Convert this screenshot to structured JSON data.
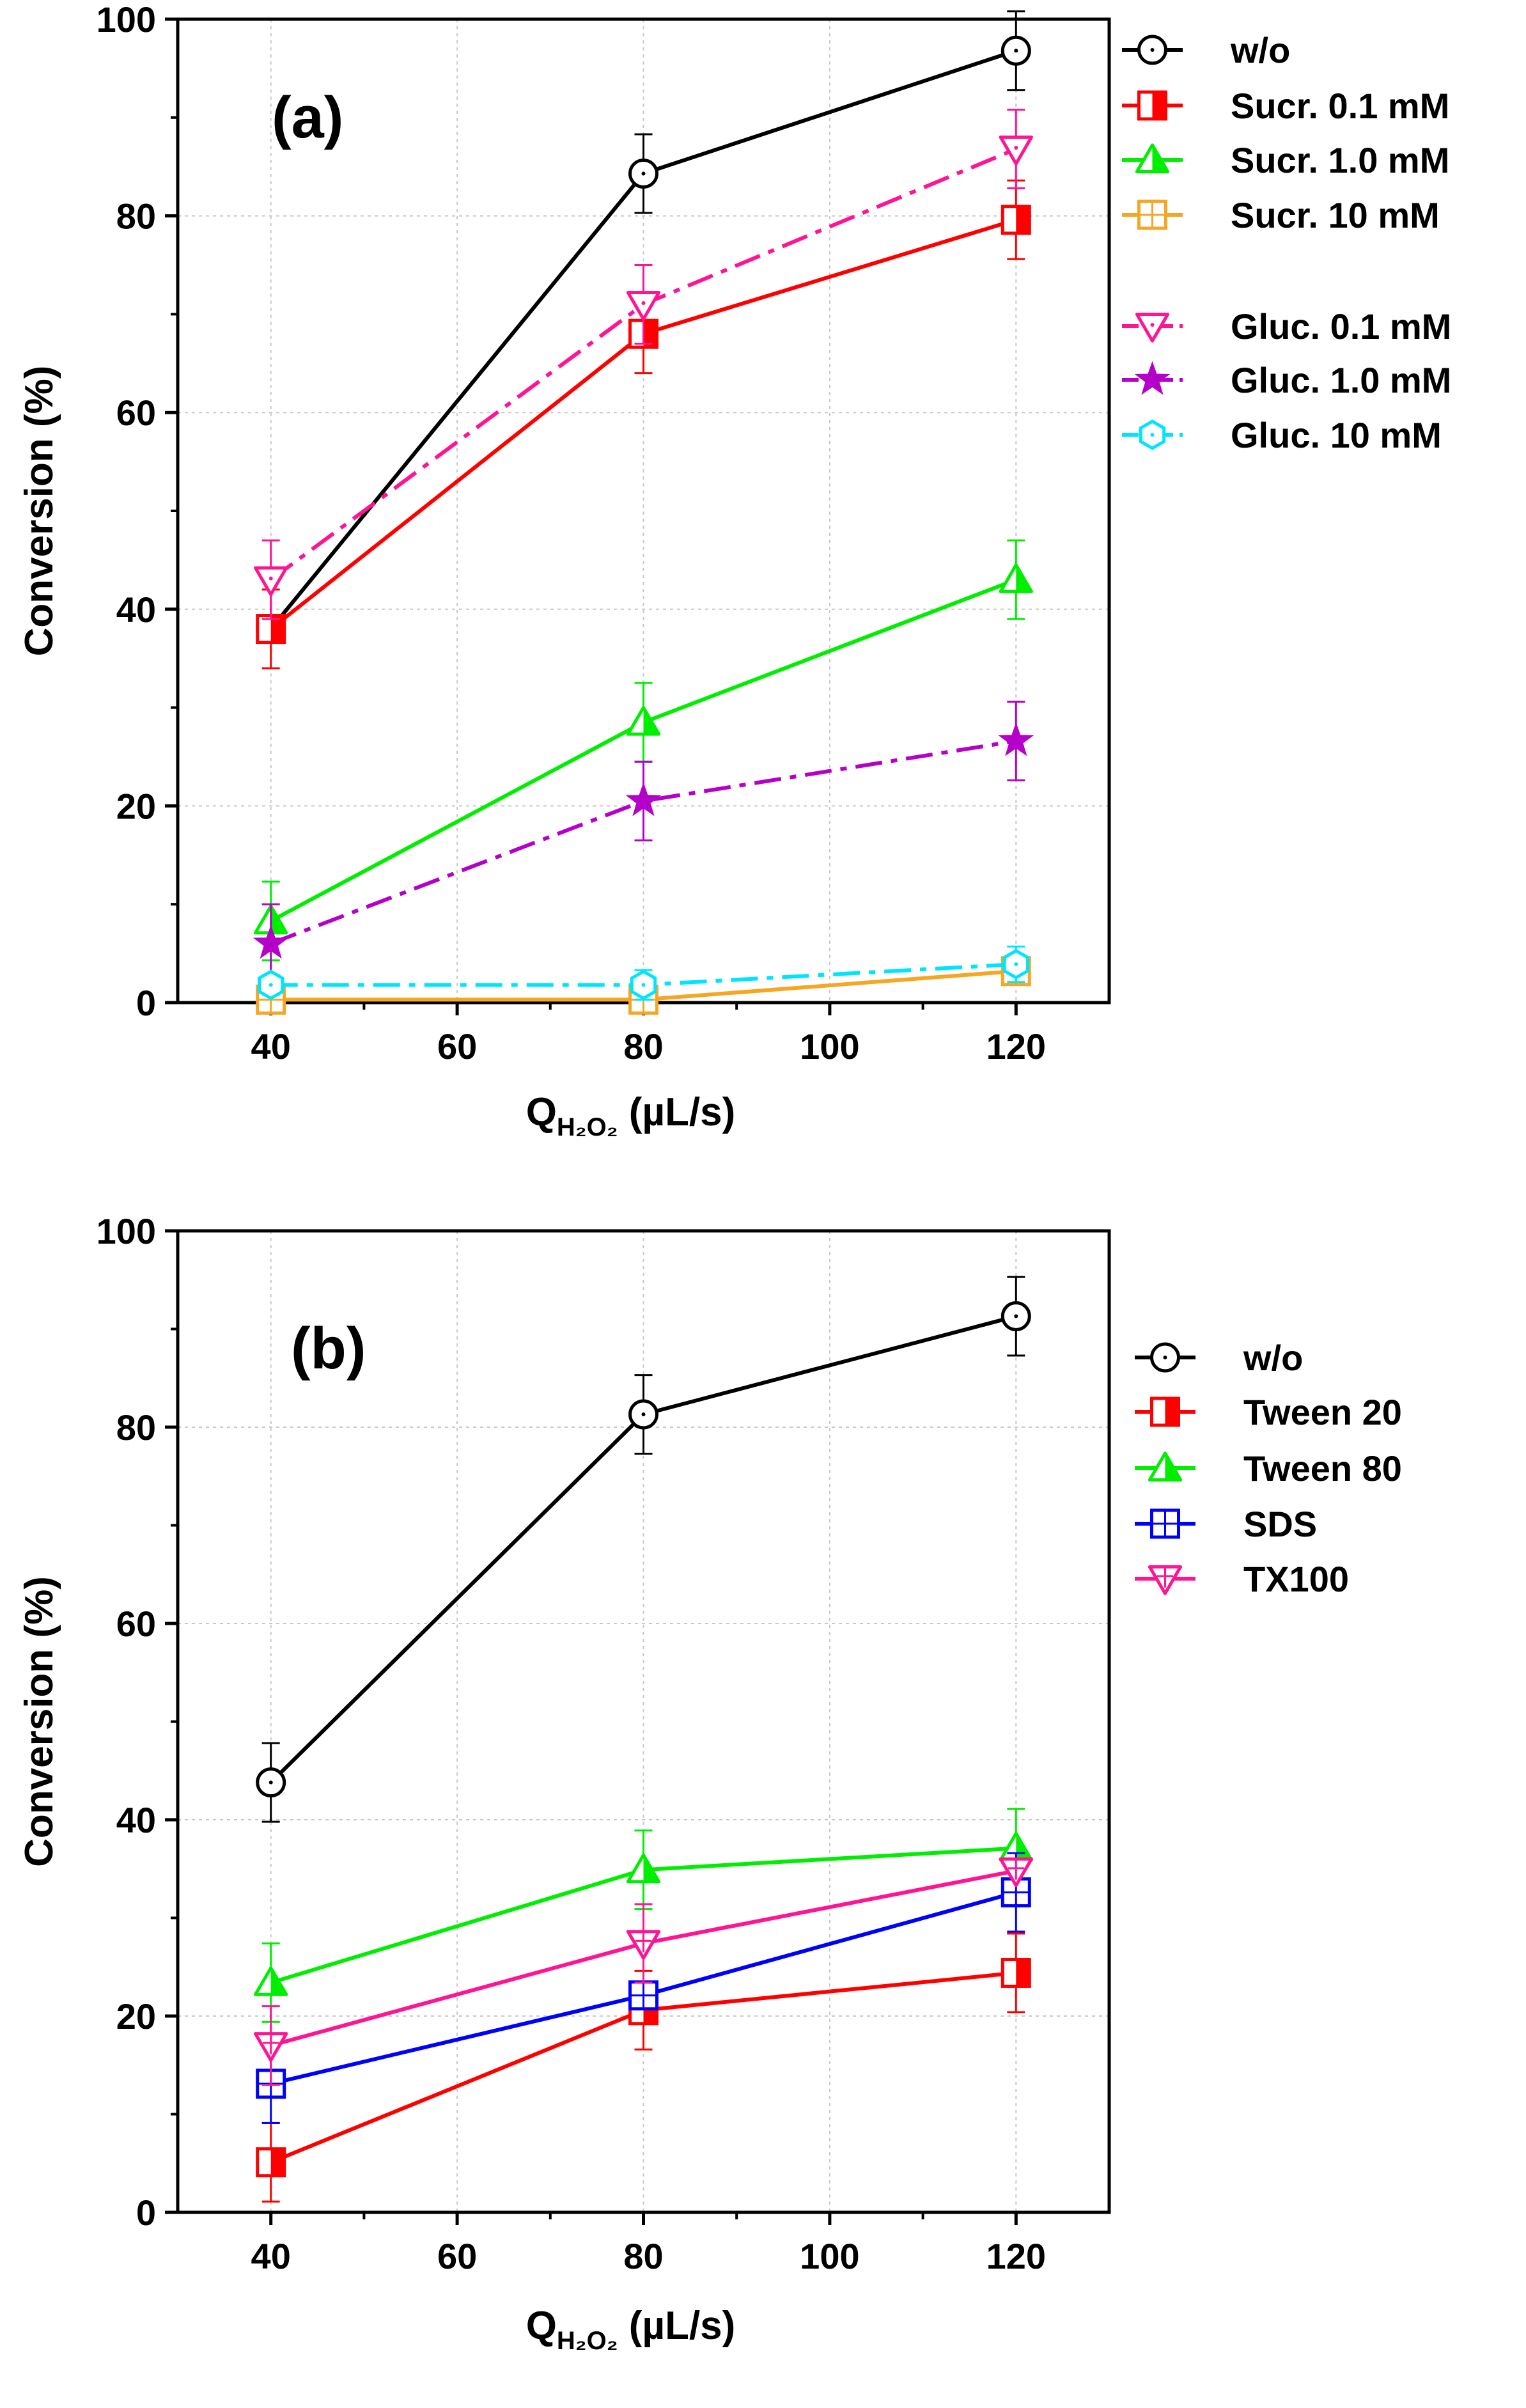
{
  "chart_data": [
    {
      "panel": "(a)",
      "type": "line",
      "xlabel": {
        "main": "Q",
        "sub": "H₂O₂",
        "unit": " (µL/s)"
      },
      "ylabel": "Conversion (%)",
      "xlim": [
        30,
        130
      ],
      "ylim": [
        0,
        100
      ],
      "xticks": [
        40,
        60,
        80,
        100,
        120
      ],
      "yticks": [
        0,
        20,
        40,
        60,
        80,
        100
      ],
      "x": [
        40,
        80,
        120
      ],
      "grid": true,
      "legend_position": "right-outside",
      "series": [
        {
          "name": "w/o",
          "values": [
            38,
            84.3,
            96.8
          ],
          "errors": [
            0,
            4,
            4
          ],
          "color": "#000000",
          "marker": "circle-dot",
          "dash": "solid"
        },
        {
          "name": "Sucr. 0.1 mM",
          "values": [
            38,
            68,
            79.6
          ],
          "errors": [
            4,
            4,
            4
          ],
          "color": "#ff0000",
          "marker": "square-half",
          "dash": "solid"
        },
        {
          "name": "Sucr. 1.0 mM",
          "values": [
            8.3,
            28.5,
            43
          ],
          "errors": [
            4,
            4,
            4
          ],
          "color": "#00ee00",
          "marker": "triangle-up-half",
          "dash": "solid"
        },
        {
          "name": "Sucr. 10  mM",
          "values": [
            0.3,
            0.3,
            3.2
          ],
          "errors": [
            0,
            0,
            0
          ],
          "color": "#f5a623",
          "marker": "square-plus",
          "dash": "solid"
        },
        {
          "name": "Gluc. 0.1 mM",
          "values": [
            43,
            71,
            86.8
          ],
          "errors": [
            4,
            4,
            4
          ],
          "color": "#ff1493",
          "marker": "triangle-down-dot",
          "dash": "dashdot",
          "legend_gap": true
        },
        {
          "name": "Gluc. 1.0 mM",
          "values": [
            6,
            20.5,
            26.6
          ],
          "errors": [
            4,
            4,
            4
          ],
          "color": "#b400c8",
          "marker": "star",
          "dash": "dashdot"
        },
        {
          "name": "Gluc. 10  mM",
          "values": [
            1.8,
            1.8,
            3.9
          ],
          "errors": [
            1,
            1.5,
            1.8
          ],
          "color": "#00e5ff",
          "marker": "hexagon-dot",
          "dash": "dashdot"
        }
      ]
    },
    {
      "panel": "(b)",
      "type": "line",
      "xlabel": {
        "main": "Q",
        "sub": "H₂O₂",
        "unit": " (µL/s)"
      },
      "ylabel": "Conversion (%)",
      "xlim": [
        30,
        130
      ],
      "ylim": [
        0,
        100
      ],
      "xticks": [
        40,
        60,
        80,
        100,
        120
      ],
      "yticks": [
        0,
        20,
        40,
        60,
        80,
        100
      ],
      "x": [
        40,
        80,
        120
      ],
      "grid": true,
      "legend_position": "right-outside",
      "series": [
        {
          "name": "w/o",
          "values": [
            43.8,
            81.3,
            91.3
          ],
          "errors": [
            4,
            4,
            4
          ],
          "color": "#000000",
          "marker": "circle-dot",
          "dash": "solid"
        },
        {
          "name": "Tween 20",
          "values": [
            5.1,
            20.6,
            24.4
          ],
          "errors": [
            4,
            4,
            4
          ],
          "color": "#ff0000",
          "marker": "square-half",
          "dash": "solid"
        },
        {
          "name": "Tween 80",
          "values": [
            23.4,
            34.9,
            37.1
          ],
          "errors": [
            4,
            4,
            4
          ],
          "color": "#00ee00",
          "marker": "triangle-up-half",
          "dash": "solid"
        },
        {
          "name": "SDS",
          "values": [
            13.1,
            22.1,
            32.6
          ],
          "errors": [
            4,
            0,
            4
          ],
          "color": "#0000ff",
          "marker": "square-plus",
          "dash": "solid"
        },
        {
          "name": "TX100",
          "values": [
            17,
            27.4,
            34.8
          ],
          "errors": [
            4,
            4,
            0
          ],
          "color": "#ff1493",
          "marker": "triangle-down-plus",
          "dash": "solid"
        }
      ]
    }
  ]
}
